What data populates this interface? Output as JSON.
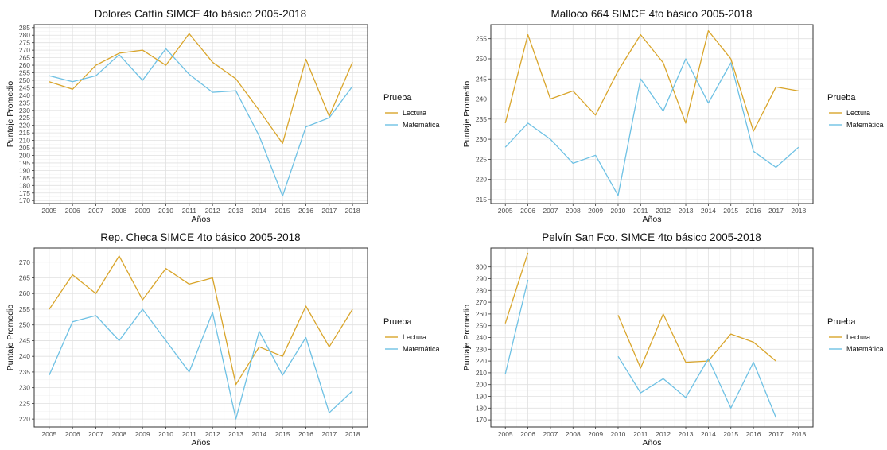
{
  "chart_data": [
    {
      "type": "line",
      "title": "Dolores Cattín SIMCE 4to básico 2005-2018",
      "xlabel": "Años",
      "ylabel": "Puntaje Promedio",
      "x": [
        2005,
        2006,
        2007,
        2008,
        2009,
        2010,
        2011,
        2012,
        2013,
        2014,
        2015,
        2016,
        2017,
        2018
      ],
      "ylim": [
        168,
        287
      ],
      "yticks": [
        170,
        175,
        180,
        185,
        190,
        195,
        200,
        205,
        210,
        215,
        220,
        225,
        230,
        235,
        240,
        245,
        250,
        255,
        260,
        265,
        270,
        275,
        280,
        285
      ],
      "legend_title": "Prueba",
      "series": [
        {
          "name": "Lectura",
          "color": "#D9A52B",
          "values": [
            249,
            244,
            260,
            268,
            270,
            260,
            281,
            262,
            251,
            230,
            208,
            264,
            226,
            262
          ]
        },
        {
          "name": "Matemática",
          "color": "#6EC1E4",
          "values": [
            253,
            249,
            253,
            267,
            250,
            271,
            254,
            242,
            243,
            213,
            173,
            219,
            225,
            246
          ]
        }
      ],
      "grid": true,
      "legend_position": "right"
    },
    {
      "type": "line",
      "title": "Malloco 664 SIMCE 4to básico 2005-2018",
      "xlabel": "Años",
      "ylabel": "Puntaje Promedio",
      "x": [
        2005,
        2006,
        2007,
        2008,
        2009,
        2010,
        2011,
        2012,
        2013,
        2014,
        2015,
        2016,
        2017,
        2018
      ],
      "ylim": [
        214,
        258.5
      ],
      "yticks": [
        215,
        220,
        225,
        230,
        235,
        240,
        245,
        250,
        255
      ],
      "legend_title": "Prueba",
      "series": [
        {
          "name": "Lectura",
          "color": "#D9A52B",
          "values": [
            234,
            256,
            240,
            242,
            236,
            247,
            256,
            249,
            234,
            257,
            250,
            232,
            243,
            242
          ]
        },
        {
          "name": "Matemática",
          "color": "#6EC1E4",
          "values": [
            228,
            234,
            230,
            224,
            226,
            216,
            245,
            237,
            250,
            239,
            249,
            227,
            223,
            228
          ]
        }
      ],
      "grid": true,
      "legend_position": "right"
    },
    {
      "type": "line",
      "title": "Rep. Checa SIMCE 4to básico 2005-2018",
      "xlabel": "Años",
      "ylabel": "Puntaje Promedio",
      "x": [
        2005,
        2006,
        2007,
        2008,
        2009,
        2010,
        2011,
        2012,
        2013,
        2014,
        2015,
        2016,
        2017,
        2018
      ],
      "ylim": [
        217.5,
        274.5
      ],
      "yticks": [
        220,
        225,
        230,
        235,
        240,
        245,
        250,
        255,
        260,
        265,
        270
      ],
      "legend_title": "Prueba",
      "series": [
        {
          "name": "Lectura",
          "color": "#D9A52B",
          "values": [
            255,
            266,
            260,
            272,
            258,
            268,
            263,
            265,
            231,
            243,
            240,
            256,
            243,
            255
          ]
        },
        {
          "name": "Matemática",
          "color": "#6EC1E4",
          "values": [
            234,
            251,
            253,
            245,
            255,
            245,
            235,
            254,
            220,
            248,
            234,
            246,
            222,
            229
          ]
        }
      ],
      "grid": true,
      "legend_position": "right"
    },
    {
      "type": "line",
      "title": "Pelvín San Fco. SIMCE 4to básico 2005-2018",
      "xlabel": "Años",
      "ylabel": "Puntaje Promedio",
      "x": [
        2005,
        2006,
        2007,
        2008,
        2009,
        2010,
        2011,
        2012,
        2013,
        2014,
        2015,
        2016,
        2017,
        2018
      ],
      "ylim": [
        164,
        316
      ],
      "yticks": [
        170,
        180,
        190,
        200,
        210,
        220,
        230,
        240,
        250,
        260,
        270,
        280,
        290,
        300
      ],
      "legend_title": "Prueba",
      "series": [
        {
          "name": "Lectura",
          "color": "#D9A52B",
          "values": [
            252,
            312,
            null,
            null,
            null,
            259,
            214,
            260,
            219,
            220,
            243,
            236,
            220,
            null
          ]
        },
        {
          "name": "Matemática",
          "color": "#6EC1E4",
          "values": [
            209,
            289,
            null,
            null,
            null,
            224,
            193,
            205,
            189,
            222,
            180,
            219,
            172,
            null
          ]
        }
      ],
      "grid": true,
      "legend_position": "right"
    }
  ]
}
